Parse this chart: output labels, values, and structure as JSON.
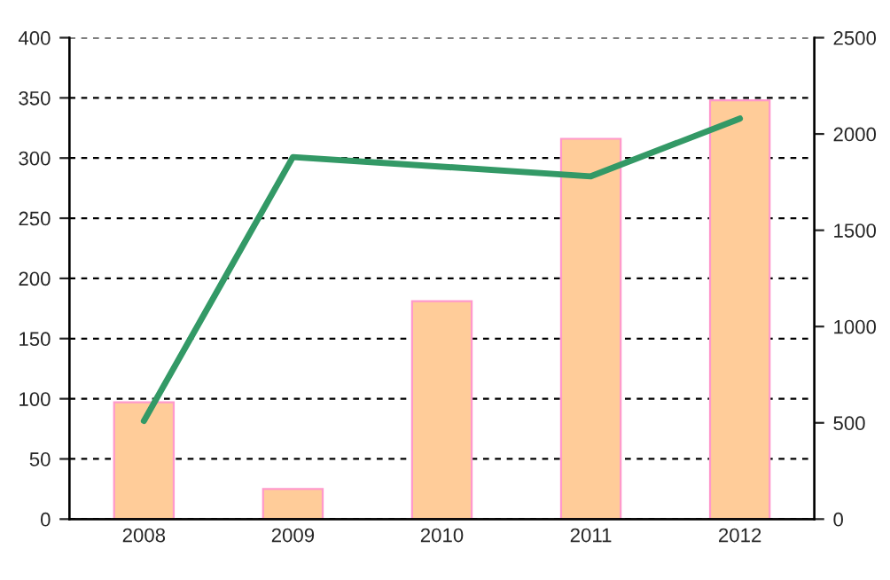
{
  "chart_data": {
    "type": "bar",
    "categories": [
      "2008",
      "2009",
      "2010",
      "2011",
      "2012"
    ],
    "series": [
      {
        "color": "#ffcc99",
        "values": [
          97,
          25,
          181,
          316,
          348
        ]
      },
      {
        "type": "line",
        "axis": "y2",
        "color": "#339966",
        "values": [
          510,
          1880,
          1830,
          1780,
          2080
        ]
      }
    ],
    "ylim": [
      0,
      400
    ],
    "yticks": [
      0,
      50,
      100,
      150,
      200,
      250,
      300,
      350,
      400
    ],
    "y2lim": [
      0,
      2500
    ],
    "y2ticks": [
      0,
      500,
      1000,
      1500,
      2000,
      2500
    ],
    "grid": "y",
    "line_style": "solid",
    "marker": "none"
  }
}
